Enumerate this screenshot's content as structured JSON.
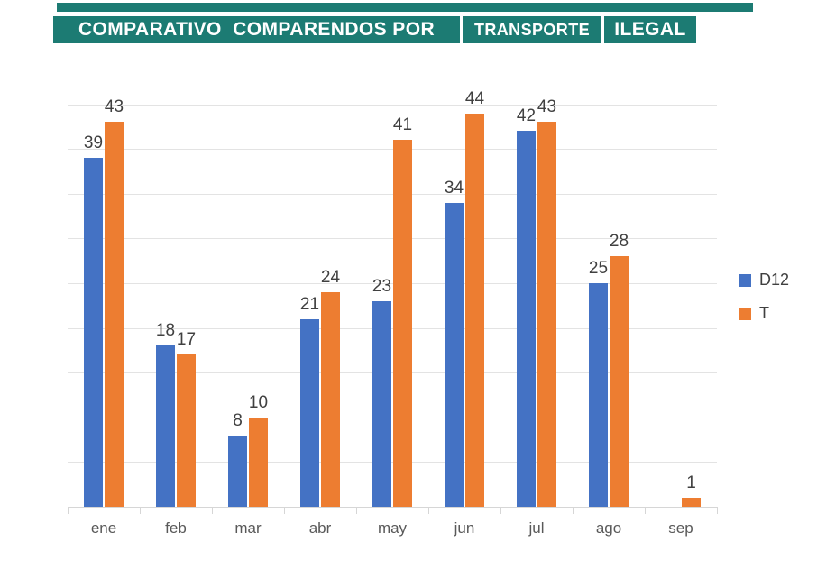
{
  "title": {
    "bg_color": "#1C7B73",
    "text_color": "#FFFFFF",
    "segments": [
      {
        "text": "COMPARATIVO  COMPARENDOS POR"
      },
      {
        "text": "TRANSPORTE"
      },
      {
        "text": "ILEGAL"
      }
    ]
  },
  "legend": {
    "position": "right",
    "items": [
      {
        "label": "D12",
        "color": "#4472C4"
      },
      {
        "label": "T",
        "color": "#ED7D31"
      }
    ]
  },
  "chart_data": {
    "type": "bar",
    "title": "COMPARATIVO  COMPARENDOS POR TRANSPORTE ILEGAL",
    "categories": [
      "ene",
      "feb",
      "mar",
      "abr",
      "may",
      "jun",
      "jul",
      "ago",
      "sep"
    ],
    "series": [
      {
        "name": "D12",
        "color": "#4472C4",
        "values": [
          39,
          18,
          8,
          21,
          23,
          34,
          42,
          25,
          null
        ]
      },
      {
        "name": "T",
        "color": "#ED7D31",
        "values": [
          43,
          17,
          10,
          24,
          41,
          44,
          43,
          28,
          1
        ]
      }
    ],
    "xlabel": "",
    "ylabel": "",
    "ylim": [
      0,
      50
    ],
    "grid_step": 5,
    "grid": true,
    "data_labels": true,
    "legend_position": "right",
    "colors": {
      "gridline": "#e3e3e3",
      "axis_line": "#d6d6d6",
      "value_label": "#404040",
      "category_label": "#595959"
    }
  }
}
